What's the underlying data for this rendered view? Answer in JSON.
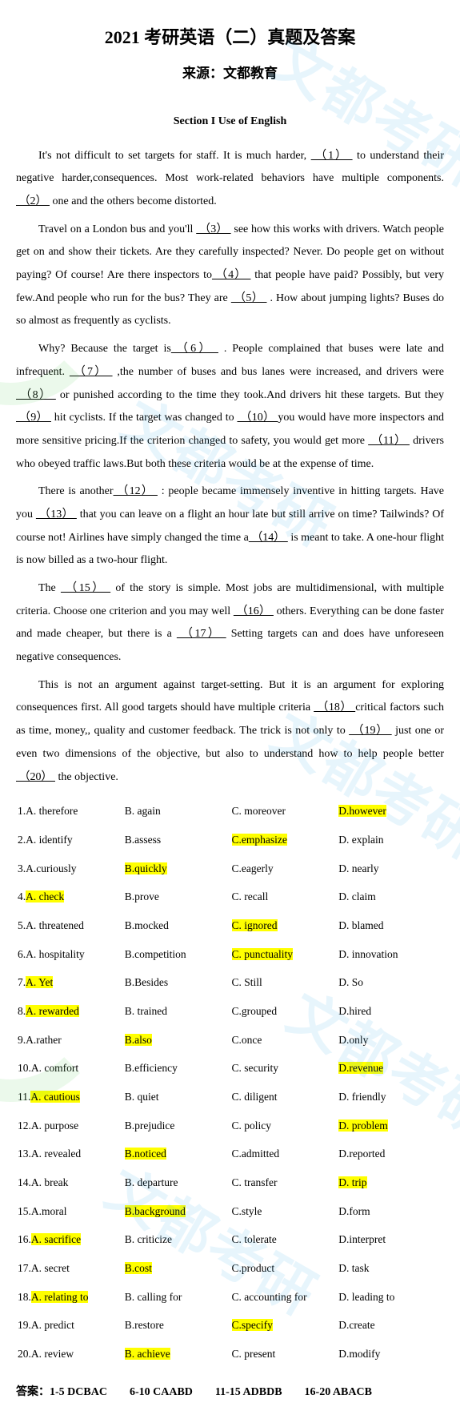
{
  "title": "2021 考研英语（二）真题及答案",
  "subtitle": "来源：文都教育",
  "section_heading": "Section I    Use of English",
  "paragraphs": [
    "It's not difficult to set targets for staff. It is much harder, （1） to understand their negative harder,consequences. Most work-related behaviors have multiple components.  （2） one and the others become distorted.",
    "Travel on a London bus and you'll （3） see how this works with drivers. Watch people get on and show their tickets. Are they carefully inspected? Never. Do people get on without paying? Of course! Are there inspectors to（4） that people have paid? Possibly, but very few.And people who run for the bus? They are （5） . How about jumping lights? Buses do so almost as frequently as cyclists.",
    "Why? Because the target is（6） . People complained that buses were late and infrequent. （7） ,the number of buses and bus lanes were increased, and drivers were （8） or punished according to the time they took.And drivers hit these targets. But they （9） hit cyclists. If the target was changed to （10）you would have more inspectors and more sensitive pricing.If the criterion changed to safety, you would get more （11） drivers who obeyed traffic laws.But both these criteria would be at the expense of time.",
    "There is another（12） : people became immensely inventive in hitting targets. Have you （13） that you can leave on a flight an hour late but still arrive on time? Tailwinds? Of course not! Airlines have simply changed the time a（14） is meant to take. A one-hour flight is now billed as a two-hour flight.",
    "The （15） of the story is simple. Most jobs are multidimensional, with multiple criteria. Choose one criterion and you may well （16） others. Everything can be done faster and made cheaper, but there is a （17）  Setting targets can and does have unforeseen negative consequences.",
    "This is not an argument against target-setting. But it is an argument for exploring consequences first. All good targets should have multiple criteria （18）critical factors such as time, money,, quality and customer feedback. The trick is not only to （19） just one or even two dimensions of the objective, but also to understand how to help people better （20） the objective."
  ],
  "options": [
    {
      "n": 1,
      "a": "A. therefore",
      "b": "B. again",
      "c": "C. moreover",
      "d": "D.however",
      "hl": "d"
    },
    {
      "n": 2,
      "a": "A. identify",
      "b": "B.assess",
      "c": "C.emphasize",
      "d": "D. explain",
      "hl": "c"
    },
    {
      "n": 3,
      "a": "A.curiously",
      "b": "B.quickly",
      "c": "C.eagerly",
      "d": "D. nearly",
      "hl": "b"
    },
    {
      "n": 4,
      "a": "A. check",
      "b": "B.prove",
      "c": "C. recall",
      "d": "D. claim",
      "hl": "a"
    },
    {
      "n": 5,
      "a": "A. threatened",
      "b": "B.mocked",
      "c": "C. ignored",
      "d": "D. blamed",
      "hl": "c"
    },
    {
      "n": 6,
      "a": "A. hospitality",
      "b": "B.competition",
      "c": "C. punctuality",
      "d": "D. innovation",
      "hl": "c"
    },
    {
      "n": 7,
      "a": "A. Yet",
      "b": "B.Besides",
      "c": "C. Still",
      "d": "D. So",
      "hl": "a"
    },
    {
      "n": 8,
      "a": "A. rewarded",
      "b": "B. trained",
      "c": "C.grouped",
      "d": "D.hired",
      "hl": "a"
    },
    {
      "n": 9,
      "a": "A.rather",
      "b": "B.also",
      "c": "C.once",
      "d": "D.only",
      "hl": "b"
    },
    {
      "n": 10,
      "a": "A. comfort",
      "b": "B.efficiency",
      "c": "C. security",
      "d": "D.revenue",
      "hl": "d"
    },
    {
      "n": 11,
      "a": "A. cautious",
      "b": "B. quiet",
      "c": "C. diligent",
      "d": "D. friendly",
      "hl": "a"
    },
    {
      "n": 12,
      "a": "A. purpose",
      "b": "B.prejudice",
      "c": "C. policy",
      "d": "D. problem",
      "hl": "d"
    },
    {
      "n": 13,
      "a": "A. revealed",
      "b": "B.noticed",
      "c": "C.admitted",
      "d": "D.reported",
      "hl": "b"
    },
    {
      "n": 14,
      "a": "A. break",
      "b": "B. departure",
      "c": "C. transfer",
      "d": "D. trip",
      "hl": "d"
    },
    {
      "n": 15,
      "a": "A.moral",
      "b": "B.background",
      "c": "C.style",
      "d": "D.form",
      "hl": "b"
    },
    {
      "n": 16,
      "a": "A. sacrifice",
      "b": "B. criticize",
      "c": "C. tolerate",
      "d": "D.interpret",
      "hl": "a"
    },
    {
      "n": 17,
      "a": "A. secret",
      "b": "B.cost",
      "c": "C.product",
      "d": "D. task",
      "hl": "b"
    },
    {
      "n": 18,
      "a": "A. relating to",
      "b": "B. calling for",
      "c": "C. accounting for",
      "d": "D. leading to",
      "hl": "a"
    },
    {
      "n": 19,
      "a": "A. predict",
      "b": "B.restore",
      "c": "C.specify",
      "d": "D.create",
      "hl": "c"
    },
    {
      "n": 20,
      "a": "A. review",
      "b": "B. achieve",
      "c": "C. present",
      "d": "D.modify",
      "hl": "b"
    }
  ],
  "answer_label": "答案：",
  "answers": [
    "1-5 DCBAC",
    "6-10 CAABD",
    "11-15 ADBDB",
    "16-20 ABACB"
  ],
  "watermarks": {
    "text": "文都考研"
  }
}
